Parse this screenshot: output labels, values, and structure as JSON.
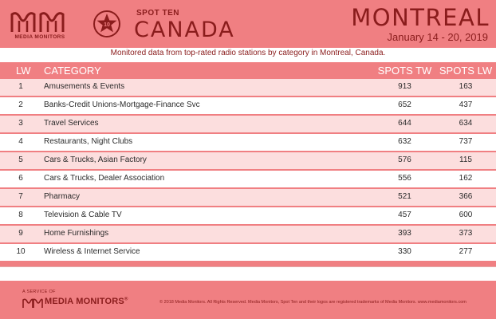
{
  "header": {
    "brand_logo_text": "MEDIA MONITORS",
    "badge_number": "10",
    "spot_ten_label": "SPOT TEN",
    "country": "CANADA",
    "city": "MONTREAL",
    "date_range": "January 14 - 20, 2019",
    "colors": {
      "band": "#f07f82",
      "text": "#8a1c1c"
    }
  },
  "subtitle": "Monitored data from top-rated radio stations by category in Montreal, Canada.",
  "table": {
    "columns": [
      "LW",
      "CATEGORY",
      "SPOTS TW",
      "SPOTS LW"
    ],
    "rows": [
      {
        "lw": "1",
        "category": "Amusements & Events",
        "spots_tw": "913",
        "spots_lw": "163"
      },
      {
        "lw": "2",
        "category": "Banks-Credit Unions-Mortgage-Finance Svc",
        "spots_tw": "652",
        "spots_lw": "437"
      },
      {
        "lw": "3",
        "category": "Travel Services",
        "spots_tw": "644",
        "spots_lw": "634"
      },
      {
        "lw": "4",
        "category": "Restaurants, Night Clubs",
        "spots_tw": "632",
        "spots_lw": "737"
      },
      {
        "lw": "5",
        "category": "Cars & Trucks, Asian Factory",
        "spots_tw": "576",
        "spots_lw": "115"
      },
      {
        "lw": "6",
        "category": "Cars & Trucks, Dealer Association",
        "spots_tw": "556",
        "spots_lw": "162"
      },
      {
        "lw": "7",
        "category": "Pharmacy",
        "spots_tw": "521",
        "spots_lw": "366"
      },
      {
        "lw": "8",
        "category": "Television & Cable TV",
        "spots_tw": "457",
        "spots_lw": "600"
      },
      {
        "lw": "9",
        "category": "Home Furnishings",
        "spots_tw": "393",
        "spots_lw": "373"
      },
      {
        "lw": "10",
        "category": "Wireless & Internet Service",
        "spots_tw": "330",
        "spots_lw": "277"
      }
    ]
  },
  "footer": {
    "service_label": "A SERVICE OF",
    "logo_text": "MEDIA MONITORS",
    "logo_mark": "®",
    "copyright": "© 2018 Media Monitors. All Rights Reserved. Media Monitors, Spot Ten and their logos are registered trademarks of Media Monitors. www.mediamonitors.com"
  }
}
